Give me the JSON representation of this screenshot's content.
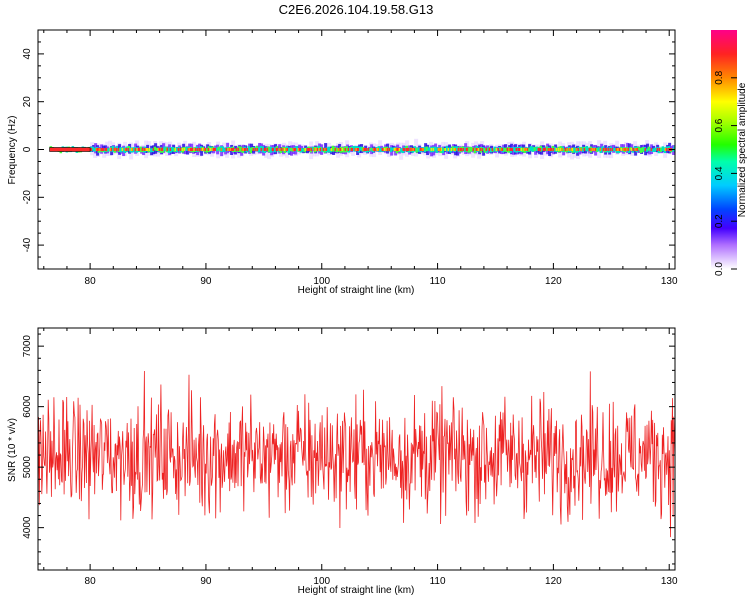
{
  "title": "C2E6.2026.104.19.58.G13",
  "chart_data": [
    {
      "type": "heatmap",
      "xlabel": "Height of straight line (km)",
      "ylabel": "Frequency (Hz)",
      "xlim": [
        75.5,
        130.5
      ],
      "ylim": [
        -50,
        50
      ],
      "xticks": [
        "80",
        "90",
        "100",
        "110",
        "120",
        "130"
      ],
      "yticks": [
        "40",
        "20",
        "0",
        "-20",
        "-40"
      ],
      "signal_x_range": [
        76.5,
        130.5
      ],
      "signal_center_hz": 0,
      "colorbar": {
        "label": "Normalized spectral amplitude",
        "range": [
          0,
          1
        ],
        "ticks": [
          "0.0",
          "0.2",
          "0.4",
          "0.6",
          "0.8"
        ]
      }
    },
    {
      "type": "line",
      "xlabel": "Height of straight line (km)",
      "ylabel": "SNR (10 * v/v)",
      "xlim": [
        75.5,
        130.5
      ],
      "ylim": [
        3300,
        7300
      ],
      "xticks": [
        "80",
        "90",
        "100",
        "110",
        "120",
        "130"
      ],
      "yticks": [
        "7000",
        "6000",
        "5000",
        "4000"
      ],
      "series": [
        {
          "color": "#ee2222",
          "mean": 5200,
          "x_range": [
            75.5,
            130.5
          ],
          "sample_count": 1000
        }
      ]
    }
  ],
  "colors": {
    "line": "#ee2222",
    "frame": "#000000"
  }
}
